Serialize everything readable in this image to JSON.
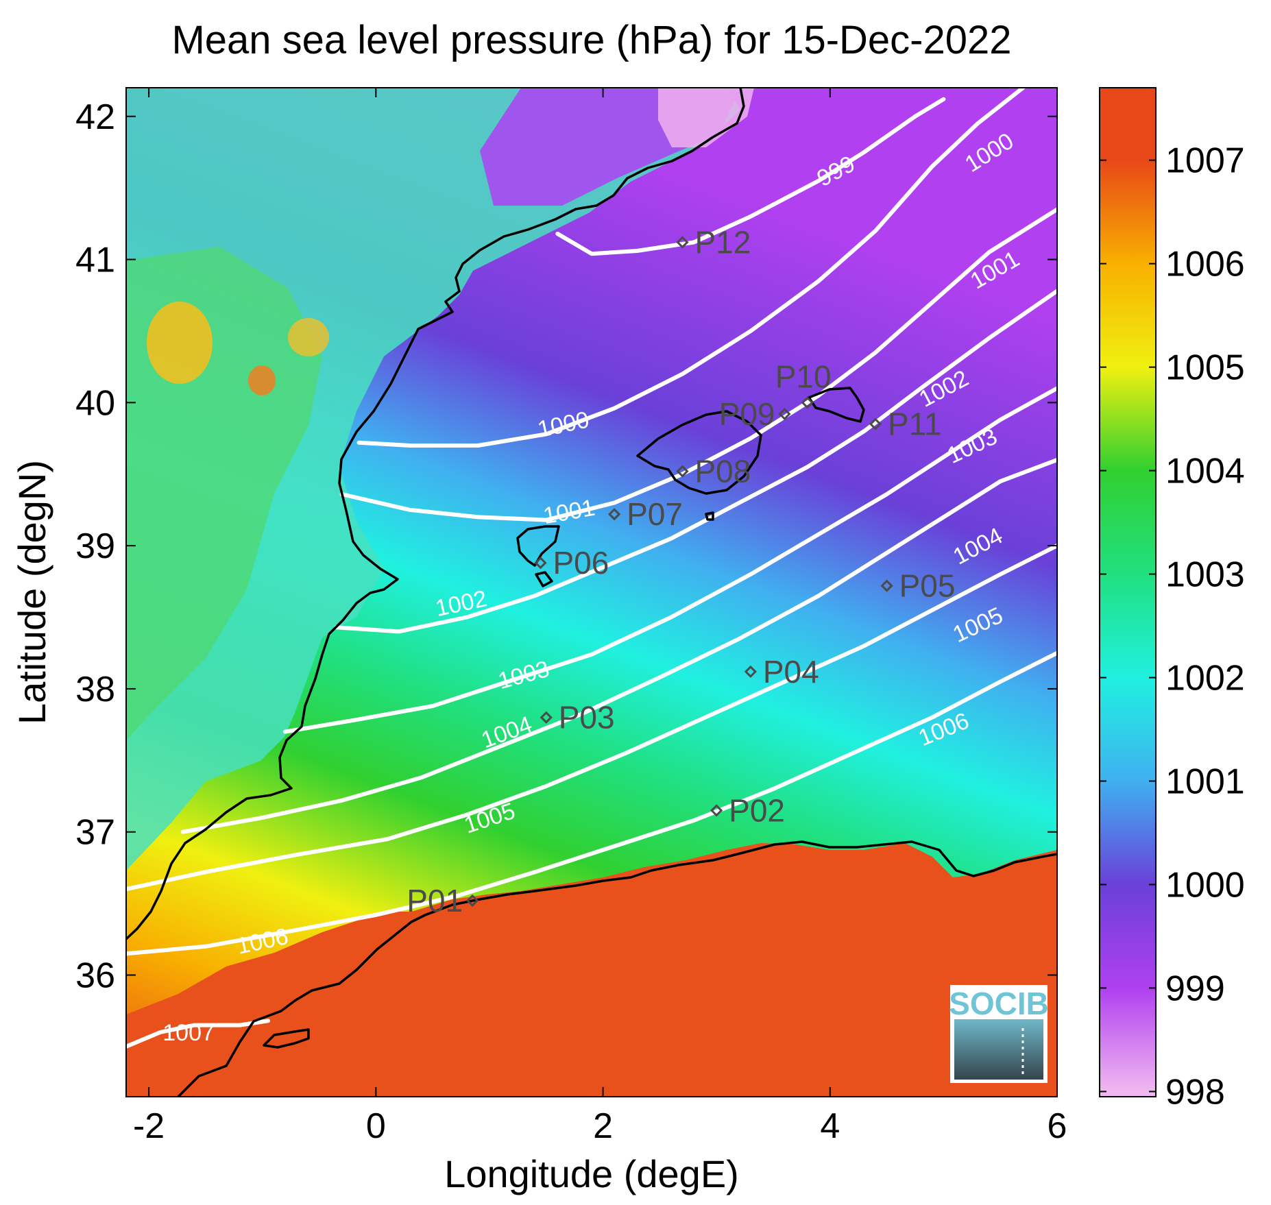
{
  "title": "Mean sea level pressure (hPa) for 15-Dec-2022",
  "map": {
    "type": "heatmap",
    "xlabel": "Longitude (degE)",
    "ylabel": "Latitude (degN)",
    "xlim": [
      -2.2,
      6.0
    ],
    "ylim": [
      35.15,
      42.2
    ],
    "xticks": [
      {
        "value": -2,
        "label": "-2"
      },
      {
        "value": 0,
        "label": "0"
      },
      {
        "value": 2,
        "label": "2"
      },
      {
        "value": 4,
        "label": "4"
      },
      {
        "value": 6,
        "label": "6"
      }
    ],
    "yticks": [
      {
        "value": 36,
        "label": "36"
      },
      {
        "value": 37,
        "label": "37"
      },
      {
        "value": 38,
        "label": "38"
      },
      {
        "value": 39,
        "label": "39"
      },
      {
        "value": 40,
        "label": "40"
      },
      {
        "value": 41,
        "label": "41"
      },
      {
        "value": 42,
        "label": "42"
      }
    ],
    "contours": [
      {
        "level": 999,
        "label": "999",
        "points": [
          [
            1.6,
            41.18
          ],
          [
            1.9,
            41.04
          ],
          [
            2.3,
            41.06
          ],
          [
            2.8,
            41.12
          ],
          [
            3.3,
            41.3
          ],
          [
            3.9,
            41.55
          ],
          [
            4.3,
            41.75
          ],
          [
            4.75,
            42.0
          ],
          [
            5.0,
            42.12
          ]
        ],
        "label_at": [
          4.05,
          41.62
        ],
        "label_angle": -28
      },
      {
        "level": 1000,
        "label": "1000",
        "points": [
          [
            -0.15,
            39.72
          ],
          [
            0.3,
            39.7
          ],
          [
            0.9,
            39.7
          ],
          [
            1.5,
            39.78
          ],
          [
            2.1,
            39.96
          ],
          [
            2.7,
            40.2
          ],
          [
            3.3,
            40.5
          ],
          [
            3.9,
            40.85
          ],
          [
            4.4,
            41.2
          ],
          [
            4.9,
            41.65
          ],
          [
            5.3,
            41.95
          ],
          [
            5.7,
            42.2
          ]
        ],
        "label_at": [
          1.65,
          39.85
        ],
        "label_angle": -12,
        "label_at2": [
          5.4,
          41.75
        ],
        "label_angle2": -32
      },
      {
        "level": 1001,
        "label": "1001",
        "points": [
          [
            -0.3,
            39.36
          ],
          [
            0.3,
            39.25
          ],
          [
            0.9,
            39.2
          ],
          [
            1.5,
            39.18
          ],
          [
            2.1,
            39.3
          ],
          [
            2.7,
            39.5
          ],
          [
            3.3,
            39.75
          ],
          [
            3.9,
            40.05
          ],
          [
            4.4,
            40.35
          ],
          [
            4.9,
            40.7
          ],
          [
            5.4,
            41.05
          ],
          [
            6.0,
            41.35
          ]
        ],
        "label_at": [
          1.7,
          39.24
        ],
        "label_angle": -10,
        "label_at2": [
          5.45,
          40.93
        ],
        "label_angle2": -30
      },
      {
        "level": 1002,
        "label": "1002",
        "points": [
          [
            -0.35,
            38.43
          ],
          [
            0.2,
            38.4
          ],
          [
            0.8,
            38.5
          ],
          [
            1.4,
            38.65
          ],
          [
            2.0,
            38.85
          ],
          [
            2.6,
            39.05
          ],
          [
            3.2,
            39.3
          ],
          [
            3.8,
            39.55
          ],
          [
            4.3,
            39.8
          ],
          [
            4.8,
            40.1
          ],
          [
            5.4,
            40.45
          ],
          [
            6.0,
            40.78
          ]
        ],
        "label_at": [
          0.75,
          38.6
        ],
        "label_angle": -12,
        "label_at2": [
          5.0,
          40.1
        ],
        "label_angle2": -28
      },
      {
        "level": 1003,
        "label": "1003",
        "points": [
          [
            -0.8,
            37.7
          ],
          [
            -0.2,
            37.78
          ],
          [
            0.5,
            37.88
          ],
          [
            1.2,
            38.06
          ],
          [
            1.9,
            38.24
          ],
          [
            2.6,
            38.5
          ],
          [
            3.3,
            38.8
          ],
          [
            3.9,
            39.08
          ],
          [
            4.5,
            39.36
          ],
          [
            5.0,
            39.62
          ],
          [
            5.5,
            39.88
          ],
          [
            6.0,
            40.1
          ]
        ],
        "label_at": [
          1.3,
          38.1
        ],
        "label_angle": -15,
        "label_at2": [
          5.25,
          39.7
        ],
        "label_angle2": -25
      },
      {
        "level": 1004,
        "label": "1004",
        "points": [
          [
            -1.7,
            37.0
          ],
          [
            -1.0,
            37.1
          ],
          [
            -0.3,
            37.22
          ],
          [
            0.4,
            37.38
          ],
          [
            1.1,
            37.6
          ],
          [
            1.8,
            37.82
          ],
          [
            2.5,
            38.08
          ],
          [
            3.2,
            38.35
          ],
          [
            3.9,
            38.65
          ],
          [
            4.5,
            38.95
          ],
          [
            5.0,
            39.2
          ],
          [
            5.5,
            39.45
          ],
          [
            6.0,
            39.6
          ]
        ],
        "label_at": [
          1.15,
          37.7
        ],
        "label_angle": -20,
        "label_at2": [
          5.3,
          39.0
        ],
        "label_angle2": -28
      },
      {
        "level": 1005,
        "label": "1005",
        "points": [
          [
            -2.2,
            36.6
          ],
          [
            -1.5,
            36.72
          ],
          [
            -0.7,
            36.84
          ],
          [
            0.1,
            36.95
          ],
          [
            0.8,
            37.12
          ],
          [
            1.5,
            37.32
          ],
          [
            2.2,
            37.55
          ],
          [
            2.9,
            37.8
          ],
          [
            3.6,
            38.05
          ],
          [
            4.3,
            38.3
          ],
          [
            4.9,
            38.55
          ],
          [
            5.5,
            38.8
          ],
          [
            6.0,
            39.0
          ]
        ],
        "label_at": [
          1.0,
          37.1
        ],
        "label_angle": -18,
        "label_at2": [
          5.3,
          38.45
        ],
        "label_angle2": -25
      },
      {
        "level": 1006,
        "label": "1006",
        "points": [
          [
            -2.2,
            36.15
          ],
          [
            -1.5,
            36.2
          ],
          [
            -0.8,
            36.3
          ],
          [
            0.0,
            36.42
          ],
          [
            0.7,
            36.55
          ],
          [
            1.4,
            36.72
          ],
          [
            2.1,
            36.9
          ],
          [
            2.8,
            37.08
          ],
          [
            3.5,
            37.3
          ],
          [
            4.2,
            37.55
          ],
          [
            4.9,
            37.8
          ],
          [
            5.5,
            38.05
          ],
          [
            6.0,
            38.25
          ]
        ],
        "label_at": [
          -1.0,
          36.24
        ],
        "label_angle": -12,
        "label_at2": [
          5.0,
          37.72
        ],
        "label_angle2": -22
      },
      {
        "level": 1007,
        "label": "1007",
        "points": [
          [
            -2.2,
            35.5
          ],
          [
            -1.9,
            35.6
          ],
          [
            -1.6,
            35.65
          ],
          [
            -1.2,
            35.65
          ],
          [
            -0.95,
            35.68
          ]
        ],
        "label_at": [
          -1.65,
          35.6
        ],
        "label_angle": 0
      }
    ]
  },
  "stations": [
    {
      "id": "P01",
      "label": "P01",
      "lon": 0.85,
      "lat": 36.52,
      "label_side": "left"
    },
    {
      "id": "P02",
      "label": "P02",
      "lon": 3.0,
      "lat": 37.15,
      "label_side": "right"
    },
    {
      "id": "P03",
      "label": "P03",
      "lon": 1.5,
      "lat": 37.8,
      "label_side": "right"
    },
    {
      "id": "P04",
      "label": "P04",
      "lon": 3.3,
      "lat": 38.12,
      "label_side": "right"
    },
    {
      "id": "P05",
      "label": "P05",
      "lon": 4.5,
      "lat": 38.72,
      "label_side": "right"
    },
    {
      "id": "P06",
      "label": "P06",
      "lon": 1.45,
      "lat": 38.88,
      "label_side": "right"
    },
    {
      "id": "P07",
      "label": "P07",
      "lon": 2.1,
      "lat": 39.22,
      "label_side": "right"
    },
    {
      "id": "P08",
      "label": "P08",
      "lon": 2.7,
      "lat": 39.52,
      "label_side": "right"
    },
    {
      "id": "P09",
      "label": "P09",
      "lon": 3.6,
      "lat": 39.92,
      "label_side": "left"
    },
    {
      "id": "P10",
      "label": "P10",
      "lon": 3.8,
      "lat": 40.0,
      "label_side": "above"
    },
    {
      "id": "P11",
      "label": "P11",
      "lon": 4.4,
      "lat": 39.85,
      "label_side": "right"
    },
    {
      "id": "P12",
      "label": "P12",
      "lon": 2.7,
      "lat": 41.12,
      "label_side": "right"
    }
  ],
  "colorbar": {
    "min": 997.95,
    "max": 1007.7,
    "ticks": [
      {
        "value": 998,
        "label": "998"
      },
      {
        "value": 999,
        "label": "999"
      },
      {
        "value": 1000,
        "label": "1000"
      },
      {
        "value": 1001,
        "label": "1001"
      },
      {
        "value": 1002,
        "label": "1002"
      },
      {
        "value": 1003,
        "label": "1003"
      },
      {
        "value": 1004,
        "label": "1004"
      },
      {
        "value": 1005,
        "label": "1005"
      },
      {
        "value": 1006,
        "label": "1006"
      },
      {
        "value": 1007,
        "label": "1007"
      }
    ],
    "colors": {
      "998": "#f0b8f0",
      "999": "#b040f0",
      "1000": "#6a40d8",
      "1001": "#40b0f0",
      "1002": "#20f0e0",
      "1003": "#20e080",
      "1004": "#30d030",
      "1005": "#f0f010",
      "1006": "#f8b000",
      "1007": "#e84818"
    }
  },
  "logo": {
    "text": "SOCIB"
  }
}
